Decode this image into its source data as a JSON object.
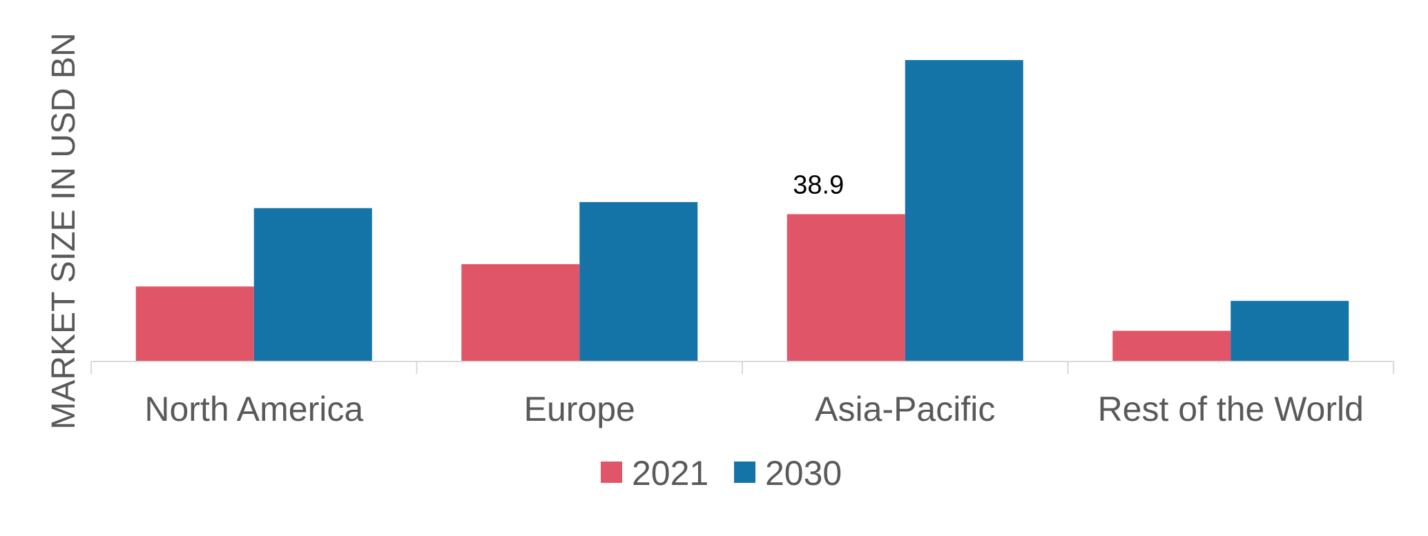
{
  "chart_data": {
    "type": "bar",
    "title": "",
    "xlabel": "",
    "ylabel": "MARKET SIZE IN USD BN",
    "categories": [
      "North America",
      "Europe",
      "Asia-Pacific",
      "Rest of the World"
    ],
    "series": [
      {
        "name": "2021",
        "color": "#e05567",
        "values": [
          19.8,
          25.7,
          38.9,
          8.1
        ]
      },
      {
        "name": "2030",
        "color": "#1474a8",
        "values": [
          40.5,
          42.1,
          79.6,
          16.0
        ]
      }
    ],
    "data_labels": [
      {
        "series": 0,
        "category": 2,
        "text": "38.9"
      }
    ],
    "ylim": [
      0,
      90
    ],
    "grid": false,
    "legend": "bottom-center",
    "axis_color": "#d9d9d9"
  }
}
